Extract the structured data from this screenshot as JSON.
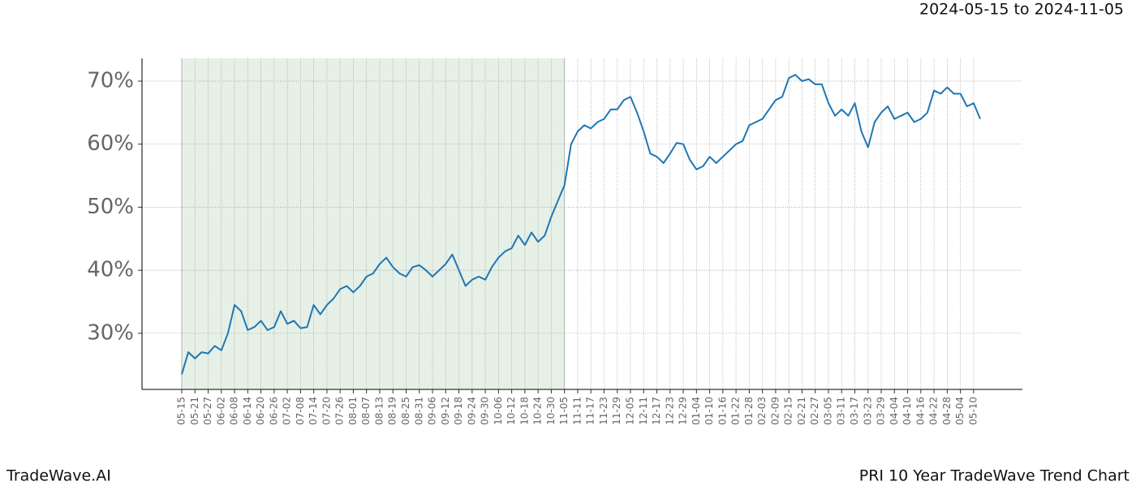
{
  "chart_data": {
    "type": "line",
    "date_range": "2024-05-15 to 2024-11-05",
    "footer_left": "TradeWave.AI",
    "footer_right": "PRI 10 Year TradeWave Trend Chart",
    "categories": [
      "05-15",
      null,
      "05-21",
      null,
      "05-27",
      null,
      "06-02",
      null,
      "06-08",
      null,
      "06-14",
      null,
      "06-20",
      null,
      "06-26",
      null,
      "07-02",
      null,
      "07-08",
      null,
      "07-14",
      null,
      "07-20",
      null,
      "07-26",
      null,
      "08-01",
      null,
      "08-07",
      null,
      "08-13",
      null,
      "08-19",
      null,
      "08-25",
      null,
      "08-31",
      null,
      "09-06",
      null,
      "09-12",
      null,
      "09-18",
      null,
      "09-24",
      null,
      "09-30",
      null,
      "10-06",
      null,
      "10-12",
      null,
      "10-18",
      null,
      "10-24",
      null,
      "10-30",
      null,
      "11-05",
      null,
      "11-11",
      null,
      "11-17",
      null,
      "11-23",
      null,
      "11-29",
      null,
      "12-05",
      null,
      "12-11",
      null,
      "12-17",
      null,
      "12-23",
      null,
      "12-29",
      null,
      "01-04",
      null,
      "01-10",
      null,
      "01-16",
      null,
      "01-22",
      null,
      "01-28",
      null,
      "02-03",
      null,
      "02-09",
      null,
      "02-15",
      null,
      "02-21",
      null,
      "02-27",
      null,
      "03-05",
      null,
      "03-11",
      null,
      "03-17",
      null,
      "03-23",
      null,
      "03-29",
      null,
      "04-04",
      null,
      "04-10",
      null,
      "04-16",
      null,
      "04-22",
      null,
      "04-28",
      null,
      "05-04",
      null,
      "05-10",
      null
    ],
    "series": [
      {
        "color": "#1f77b4",
        "values": [
          23.5,
          27,
          26,
          27,
          26.8,
          28,
          27.3,
          30,
          34.5,
          33.5,
          30.5,
          31,
          32,
          30.5,
          31,
          33.5,
          31.5,
          32,
          30.8,
          31,
          34.5,
          33,
          34.5,
          35.5,
          37,
          37.5,
          36.5,
          37.5,
          39,
          39.5,
          41,
          42,
          40.5,
          39.5,
          39,
          40.5,
          40.8,
          40,
          39,
          40,
          41,
          42.5,
          40,
          37.5,
          38.5,
          39,
          38.5,
          40.5,
          42,
          43,
          43.5,
          45.5,
          44,
          46,
          44.5,
          45.5,
          48.5,
          51,
          53.5,
          60,
          62,
          63,
          62.5,
          63.5,
          64,
          65.5,
          65.5,
          67,
          67.5,
          65,
          62,
          58.5,
          58,
          57,
          58.5,
          60.2,
          60,
          57.5,
          56,
          56.5,
          58,
          57,
          58,
          59,
          60,
          60.5,
          63,
          63.5,
          64,
          65.5,
          67,
          67.5,
          70.5,
          71,
          70,
          70.3,
          69.5,
          69.5,
          66.5,
          64.5,
          65.5,
          64.5,
          66.5,
          62,
          59.5,
          63.5,
          65,
          66,
          64,
          64.5,
          65,
          63.5,
          64,
          65,
          68.5,
          68,
          69,
          68,
          68,
          66,
          66.5,
          64
        ]
      }
    ],
    "shade": {
      "from": "05-15",
      "to": "11-05",
      "color": "#e6f0e6"
    },
    "ylim": [
      21.1,
      73.6
    ],
    "yticks": [
      {
        "value": 30,
        "label": "30%"
      },
      {
        "value": 40,
        "label": "40%"
      },
      {
        "value": 50,
        "label": "50%"
      },
      {
        "value": 60,
        "label": "60%"
      },
      {
        "value": 70,
        "label": "70%"
      }
    ],
    "grid": true
  }
}
